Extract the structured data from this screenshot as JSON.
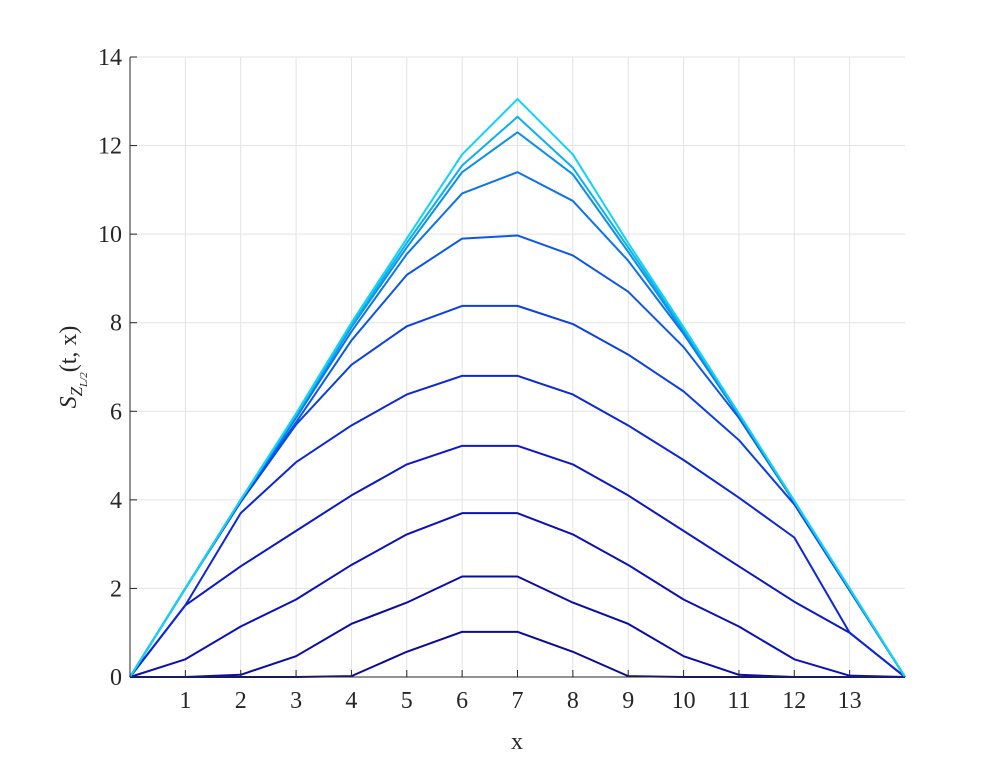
{
  "chart_data": {
    "type": "line",
    "x": [
      0,
      1,
      2,
      3,
      4,
      5,
      6,
      7,
      8,
      9,
      10,
      11,
      12,
      13,
      14
    ],
    "xlabel": "x",
    "ylabel": {
      "main": "S",
      "sub": "Z",
      "subsub": "L/2",
      "rest": "(t, x)"
    },
    "xlim": [
      0,
      14
    ],
    "ylim": [
      0,
      14
    ],
    "xticks": [
      1,
      2,
      3,
      4,
      5,
      6,
      7,
      8,
      9,
      10,
      11,
      12,
      13
    ],
    "yticks": [
      0,
      2,
      4,
      6,
      8,
      10,
      12,
      14
    ],
    "grid": true,
    "series": [
      {
        "color": "#0a0a96",
        "values": [
          0,
          0,
          0,
          0,
          0.02,
          0.57,
          1.02,
          1.02,
          0.57,
          0.02,
          0,
          0,
          0,
          0,
          0
        ]
      },
      {
        "color": "#0b0ca8",
        "values": [
          0,
          0,
          0.05,
          0.47,
          1.2,
          1.68,
          2.27,
          2.27,
          1.68,
          1.2,
          0.47,
          0.05,
          0,
          0,
          0
        ]
      },
      {
        "color": "#0c10b8",
        "values": [
          0,
          0.4,
          1.14,
          1.75,
          2.53,
          3.22,
          3.7,
          3.7,
          3.22,
          2.53,
          1.75,
          1.14,
          0.4,
          0.03,
          0
        ]
      },
      {
        "color": "#0c18c8",
        "values": [
          0,
          1.62,
          2.5,
          3.3,
          4.1,
          4.8,
          5.22,
          5.22,
          4.8,
          4.1,
          3.3,
          2.5,
          1.7,
          1.0,
          0
        ]
      },
      {
        "color": "#0c28d6",
        "values": [
          0,
          1.62,
          3.7,
          4.85,
          5.68,
          6.38,
          6.8,
          6.8,
          6.38,
          5.68,
          4.9,
          4.05,
          3.15,
          1.0,
          0
        ]
      },
      {
        "color": "#0c40e0",
        "values": [
          0,
          2.0,
          3.95,
          5.7,
          7.05,
          7.92,
          8.38,
          8.38,
          7.97,
          7.28,
          6.45,
          5.35,
          3.9,
          1.95,
          0
        ]
      },
      {
        "color": "#0c58e6",
        "values": [
          0,
          2.0,
          4.0,
          5.75,
          7.6,
          9.08,
          9.9,
          9.97,
          9.52,
          8.7,
          7.45,
          5.85,
          3.95,
          1.97,
          0
        ]
      },
      {
        "color": "#0c74ea",
        "values": [
          0,
          2.0,
          4.0,
          5.85,
          7.8,
          9.55,
          10.92,
          11.4,
          10.75,
          9.4,
          7.75,
          5.9,
          3.95,
          1.98,
          0
        ]
      },
      {
        "color": "#0c90ec",
        "values": [
          0,
          2.0,
          4.0,
          5.9,
          7.9,
          9.7,
          11.4,
          12.3,
          11.35,
          9.6,
          7.8,
          5.92,
          3.96,
          1.99,
          0
        ]
      },
      {
        "color": "#0cb0ee",
        "values": [
          0,
          2.0,
          4.0,
          5.92,
          7.95,
          9.8,
          11.55,
          12.65,
          11.5,
          9.7,
          7.85,
          5.94,
          3.97,
          2.0,
          0
        ]
      },
      {
        "color": "#10d4f2",
        "values": [
          0,
          2.0,
          4.0,
          5.95,
          8.0,
          9.9,
          11.8,
          13.05,
          11.8,
          9.8,
          7.9,
          5.95,
          3.98,
          2.0,
          0
        ]
      }
    ]
  }
}
